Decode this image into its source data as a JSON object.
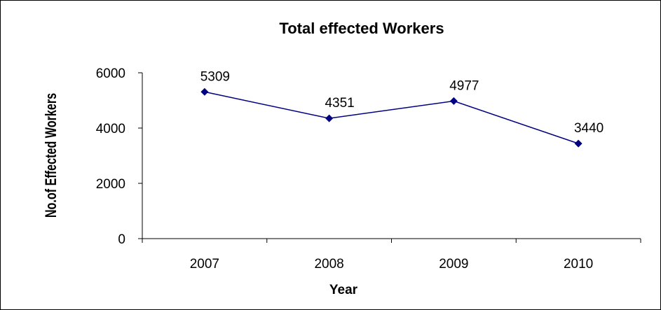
{
  "chart_data": {
    "type": "line",
    "title": "Total effected Workers",
    "xlabel": "Year",
    "ylabel": "No.of Effected Workers",
    "categories": [
      "2007",
      "2008",
      "2009",
      "2010"
    ],
    "series": [
      {
        "values": [
          5309,
          4351,
          4977,
          3440
        ],
        "color": "#000080"
      }
    ],
    "data_labels": [
      "5309",
      "4351",
      "4977",
      "3440"
    ],
    "y_ticks": [
      0,
      2000,
      4000,
      6000
    ],
    "y_tick_labels": [
      "0",
      "2000",
      "4000",
      "6000"
    ],
    "ylim": [
      0,
      6000
    ],
    "grid": false,
    "legend": "none"
  }
}
